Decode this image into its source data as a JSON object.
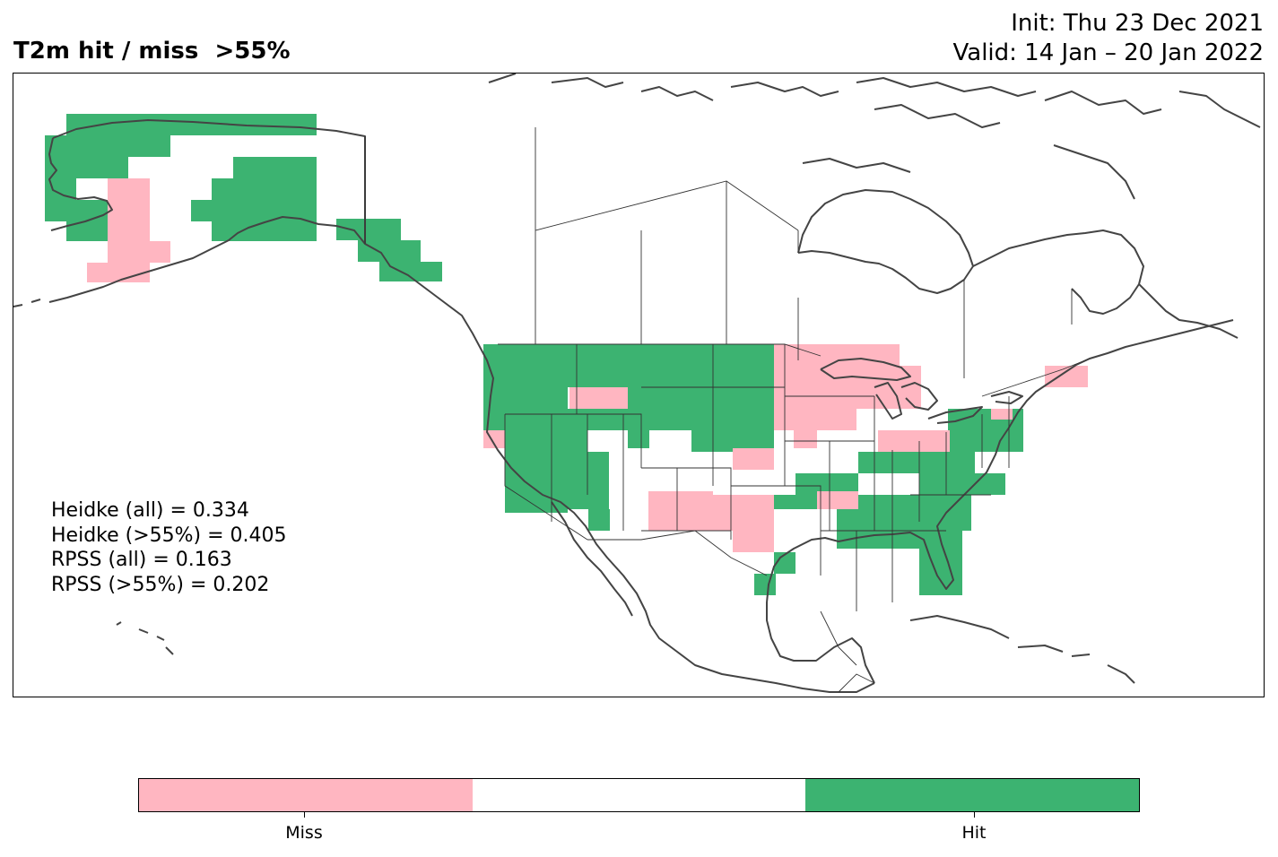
{
  "title": {
    "left": "T2m hit / miss  >55%",
    "init": "Init: Thu 23 Dec 2021",
    "valid": "Valid: 14 Jan – 20 Jan 2022"
  },
  "stats": [
    "Heidke (all) = 0.334",
    "Heidke (>55%) = 0.405",
    "RPSS (all) = 0.163",
    "RPSS (>55%) = 0.202"
  ],
  "colorbar": {
    "labels": [
      "Miss",
      "Hit"
    ],
    "colors": [
      "#ffb6c1",
      "#ffffff",
      "#3cb371"
    ]
  },
  "colors": {
    "miss": "#ffb6c1",
    "hit": "#3cb371",
    "coast": "#444444",
    "border": "#333333"
  }
}
